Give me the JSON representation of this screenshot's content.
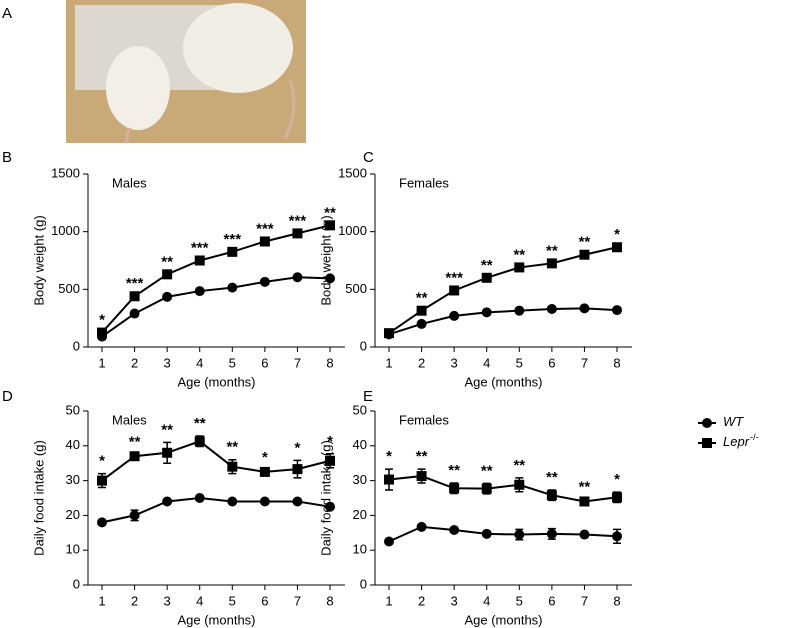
{
  "photo": {
    "label": "A"
  },
  "chart_data": [
    {
      "type": "line",
      "panel_label": "B",
      "subtitle": "Males",
      "xlabel": "Age (months)",
      "ylabel": "Body weight (g)",
      "x": [
        1,
        2,
        3,
        4,
        5,
        6,
        7,
        8
      ],
      "xlim": [
        0.57,
        8.46
      ],
      "xticks": [
        1,
        2,
        3,
        4,
        5,
        6,
        7,
        8
      ],
      "ylim": [
        0,
        1500
      ],
      "yticks": [
        0,
        500,
        1000,
        1500
      ],
      "series": [
        {
          "name": "WT",
          "marker": "circle",
          "color": "#000000",
          "values": [
            90,
            290,
            435,
            485,
            515,
            565,
            605,
            595
          ]
        },
        {
          "name": "Lepr -/-",
          "marker": "square",
          "color": "#000000",
          "values": [
            125,
            440,
            630,
            750,
            825,
            915,
            985,
            1055
          ]
        }
      ],
      "annotations": [
        "*",
        "***",
        "**",
        "***",
        "***",
        "***",
        "***",
        "**"
      ]
    },
    {
      "type": "line",
      "panel_label": "C",
      "subtitle": "Females",
      "xlabel": "Age (months)",
      "ylabel": "Body weight (g)",
      "x": [
        1,
        2,
        3,
        4,
        5,
        6,
        7,
        8
      ],
      "xlim": [
        0.57,
        8.46
      ],
      "xticks": [
        1,
        2,
        3,
        4,
        5,
        6,
        7,
        8
      ],
      "ylim": [
        0,
        1500
      ],
      "yticks": [
        0,
        500,
        1000,
        1500
      ],
      "series": [
        {
          "name": "WT",
          "marker": "circle",
          "color": "#000000",
          "values": [
            110,
            200,
            270,
            300,
            315,
            330,
            335,
            320
          ]
        },
        {
          "name": "Lepr -/-",
          "marker": "square",
          "color": "#000000",
          "values": [
            120,
            315,
            490,
            600,
            690,
            725,
            800,
            865
          ]
        }
      ],
      "annotations": [
        null,
        "**",
        "***",
        "**",
        "**",
        "**",
        "**",
        "*"
      ]
    },
    {
      "type": "line",
      "panel_label": "D",
      "subtitle": "Males",
      "xlabel": "Age (months)",
      "ylabel": "Daily food intake (g)",
      "x": [
        1,
        2,
        3,
        4,
        5,
        6,
        7,
        8
      ],
      "xlim": [
        0.57,
        8.46
      ],
      "xticks": [
        1,
        2,
        3,
        4,
        5,
        6,
        7,
        8
      ],
      "ylim": [
        0,
        50
      ],
      "yticks": [
        0,
        10,
        20,
        30,
        40,
        50
      ],
      "series": [
        {
          "name": "WT",
          "marker": "circle",
          "color": "#000000",
          "values": [
            18,
            20,
            24,
            25,
            24,
            24,
            24,
            22.5
          ],
          "errors": [
            0.5,
            1.5,
            0.5,
            0.5,
            0.5,
            0.5,
            0.5,
            0.5
          ]
        },
        {
          "name": "Lepr -/-",
          "marker": "square",
          "color": "#000000",
          "values": [
            30,
            37,
            38,
            41.3,
            34,
            32.5,
            33.3,
            35.7
          ],
          "errors": [
            2,
            0.5,
            3,
            1.5,
            2,
            0.5,
            2.5,
            2
          ]
        }
      ],
      "annotations": [
        "*",
        "**",
        "**",
        "**",
        "**",
        "*",
        "*",
        "*"
      ]
    },
    {
      "type": "line",
      "panel_label": "E",
      "subtitle": "Females",
      "xlabel": "Age (months)",
      "ylabel": "Daily food intake (g)",
      "x": [
        1,
        2,
        3,
        4,
        5,
        6,
        7,
        8
      ],
      "xlim": [
        0.57,
        8.46
      ],
      "xticks": [
        1,
        2,
        3,
        4,
        5,
        6,
        7,
        8
      ],
      "ylim": [
        0,
        50
      ],
      "yticks": [
        0,
        10,
        20,
        30,
        40,
        50
      ],
      "legend": "right",
      "series": [
        {
          "name": "WT",
          "marker": "circle",
          "color": "#000000",
          "values": [
            12.5,
            16.7,
            15.8,
            14.7,
            14.5,
            14.7,
            14.5,
            14
          ],
          "errors": [
            0.5,
            0.5,
            0.5,
            0.5,
            1.5,
            1.5,
            0.5,
            2
          ]
        },
        {
          "name": "Lepr -/-",
          "marker": "square",
          "color": "#000000",
          "values": [
            30.3,
            31.3,
            27.8,
            27.7,
            28.8,
            25.8,
            24,
            25.2
          ],
          "errors": [
            3,
            2,
            1.5,
            1.5,
            2,
            1.5,
            0.5,
            1.5
          ]
        }
      ],
      "annotations": [
        "*",
        "**",
        "**",
        "**",
        "**",
        "**",
        "**",
        "*"
      ]
    }
  ]
}
